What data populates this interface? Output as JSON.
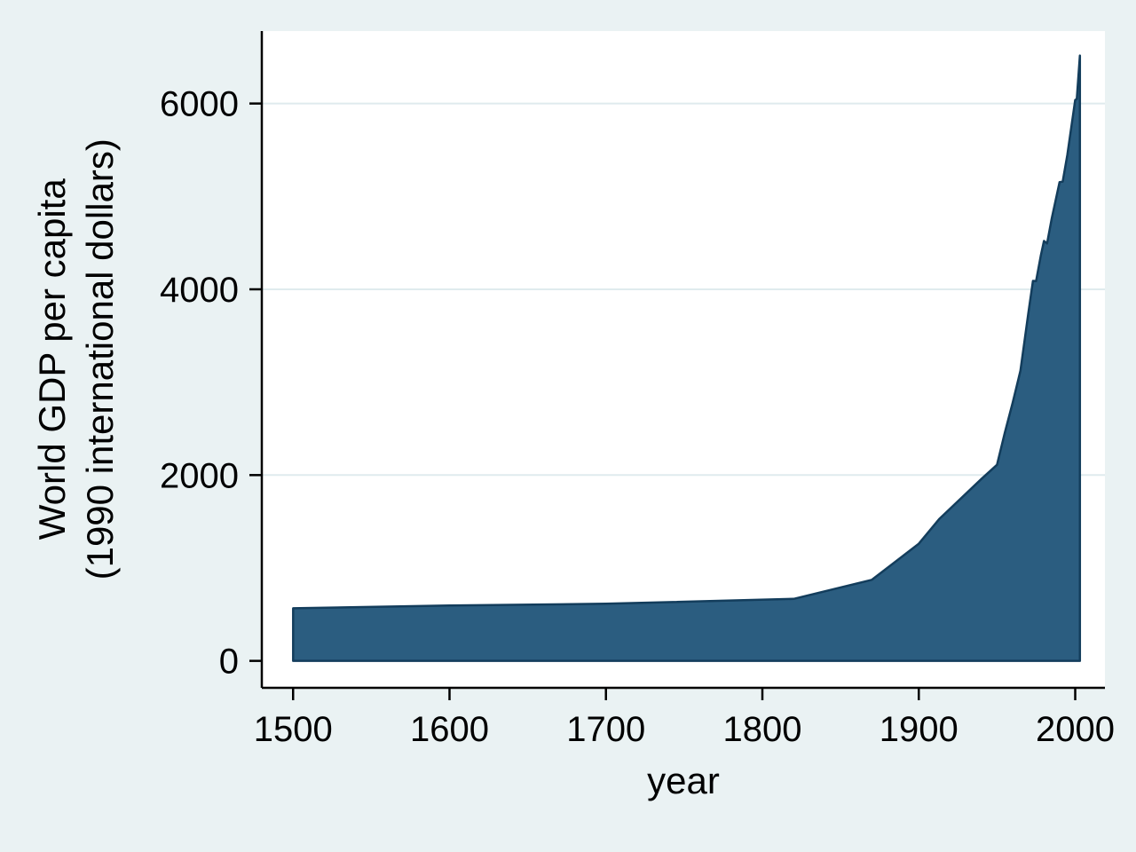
{
  "chart_data": {
    "type": "area",
    "title": "",
    "xlabel": "year",
    "ylabel": "World GDP per capita\n(1990 international dollars)",
    "ylabel_lines": [
      "World GDP per capita",
      "(1990 international dollars)"
    ],
    "xlim": [
      1480,
      2019
    ],
    "ylim": [
      -290,
      6780
    ],
    "xticks": [
      1500,
      1600,
      1700,
      1800,
      1900,
      2000
    ],
    "yticks": [
      0,
      2000,
      4000,
      6000
    ],
    "grid": true,
    "legend": "none",
    "series": [
      {
        "name": "World GDP per capita (1990 international dollars)",
        "x": [
          1500,
          1600,
          1700,
          1820,
          1870,
          1900,
          1913,
          1940,
          1950,
          1955,
          1960,
          1965,
          1970,
          1973,
          1975,
          1978,
          1980,
          1982,
          1985,
          1990,
          1992,
          1995,
          2000,
          2001,
          2003
        ],
        "y": [
          566,
          596,
          615,
          667,
          873,
          1262,
          1526,
          1958,
          2111,
          2456,
          2777,
          3124,
          3736,
          4091,
          4088,
          4360,
          4520,
          4494,
          4764,
          5154,
          5159,
          5450,
          6038,
          6049,
          6516
        ]
      }
    ],
    "colors": {
      "background": "#eaf2f3",
      "plot_bg": "#ffffff",
      "grid": "#dfebee",
      "axis": "#000000",
      "area_fill": "#2b5d80",
      "area_line": "#133d5c",
      "text": "#000000"
    }
  }
}
